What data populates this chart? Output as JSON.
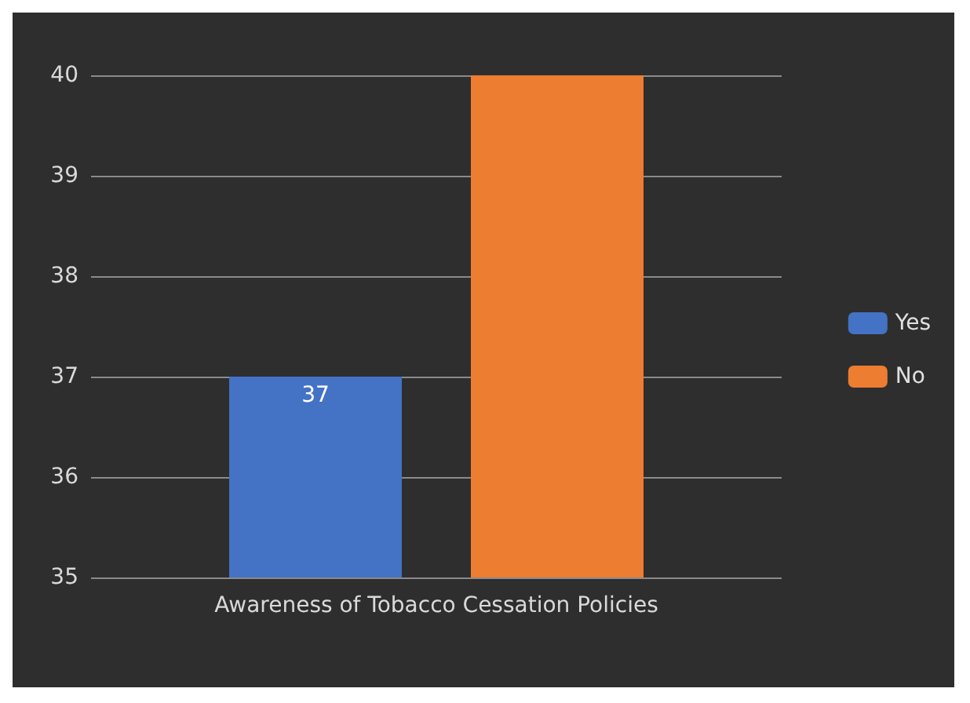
{
  "chart_data": {
    "type": "bar",
    "categories": [
      "Awareness of Tobacco Cessation Policies"
    ],
    "series": [
      {
        "name": "Yes",
        "color": "#4472c4",
        "values": [
          37
        ],
        "value_labels": [
          "37"
        ]
      },
      {
        "name": "No",
        "color": "#ed7d31",
        "values": [
          40
        ],
        "value_labels": [
          null
        ]
      }
    ],
    "ylim": [
      35,
      40
    ],
    "yticks": [
      35,
      36,
      37,
      38,
      39,
      40
    ],
    "grid": "y",
    "legend": "right"
  }
}
